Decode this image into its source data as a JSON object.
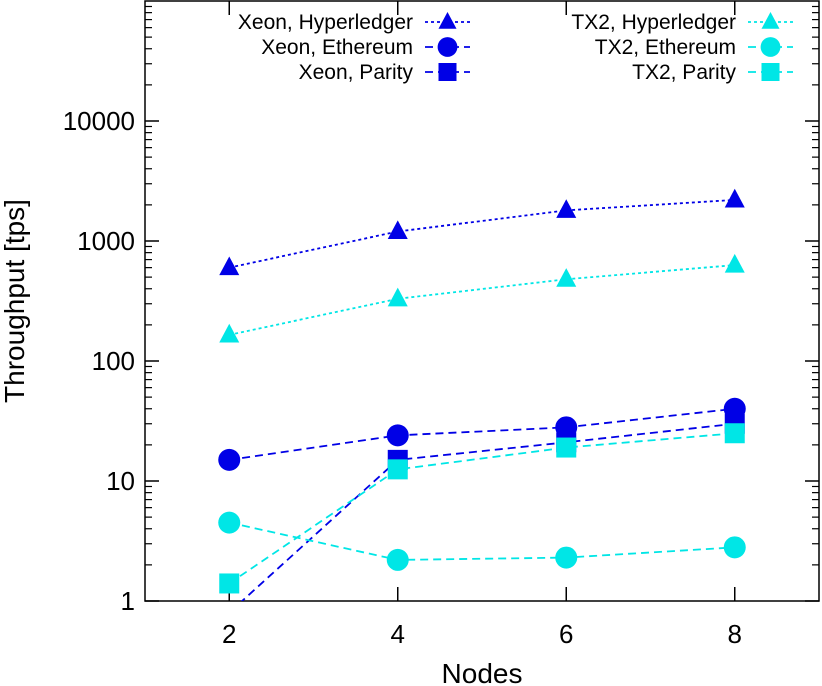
{
  "chart_data": {
    "type": "line",
    "title": "",
    "xlabel": "Nodes",
    "ylabel": "Throughput [tps]",
    "x": [
      2,
      4,
      6,
      8
    ],
    "xlim": [
      1,
      9
    ],
    "ylim": [
      1,
      100000
    ],
    "y_scale": "log",
    "x_ticks": [
      "2",
      "4",
      "6",
      "8"
    ],
    "y_ticks": [
      {
        "value": 1,
        "label": "1"
      },
      {
        "value": 10,
        "label": "10"
      },
      {
        "value": 100,
        "label": "100"
      },
      {
        "value": 1000,
        "label": "1000"
      },
      {
        "value": 10000,
        "label": "10000"
      }
    ],
    "grid": false,
    "legend_placement": "top",
    "series": [
      {
        "name": "Xeon, Hyperledger",
        "color": "#0000e6",
        "marker": "triangle",
        "dash": "dotted",
        "values": [
          600,
          1200,
          1800,
          2200
        ]
      },
      {
        "name": "Xeon, Ethereum",
        "color": "#0000e6",
        "marker": "circle",
        "dash": "dashed",
        "values": [
          15,
          24,
          28,
          40
        ]
      },
      {
        "name": "Xeon, Parity",
        "color": "#0000e6",
        "marker": "square",
        "dash": "dashed",
        "values": [
          0.8,
          15,
          21,
          30
        ]
      },
      {
        "name": "TX2, Hyperledger",
        "color": "#00e6e6",
        "marker": "triangle",
        "dash": "dotted",
        "values": [
          165,
          330,
          480,
          630
        ]
      },
      {
        "name": "TX2, Ethereum",
        "color": "#00e6e6",
        "marker": "circle",
        "dash": "dashed",
        "values": [
          4.5,
          2.2,
          2.3,
          2.8
        ]
      },
      {
        "name": "TX2, Parity",
        "color": "#00e6e6",
        "marker": "square",
        "dash": "dashed",
        "values": [
          1.4,
          12.5,
          19,
          25
        ]
      }
    ]
  }
}
